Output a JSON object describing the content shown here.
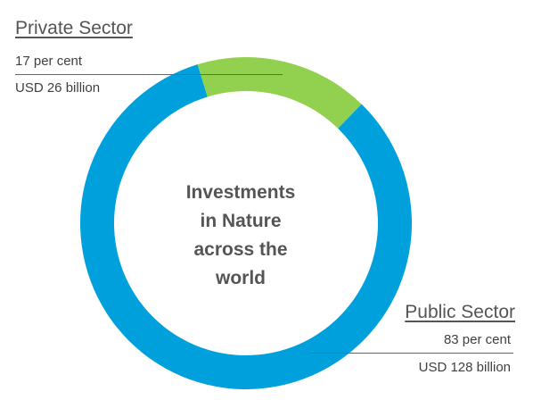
{
  "chart_data": {
    "type": "pie",
    "variant": "donut",
    "center_label": [
      "Investments",
      "in Nature",
      "across the",
      "world"
    ],
    "slices": [
      {
        "name": "Private Sector",
        "percent_label": "17 per cent",
        "amount_label": "USD 26 billion",
        "value": 17,
        "amount_usd_billion": 26,
        "color": "#92d050"
      },
      {
        "name": "Public Sector",
        "percent_label": "83 per cent",
        "amount_label": "USD 128 billion",
        "value": 83,
        "amount_usd_billion": 128,
        "color": "#00a0dc"
      }
    ]
  }
}
